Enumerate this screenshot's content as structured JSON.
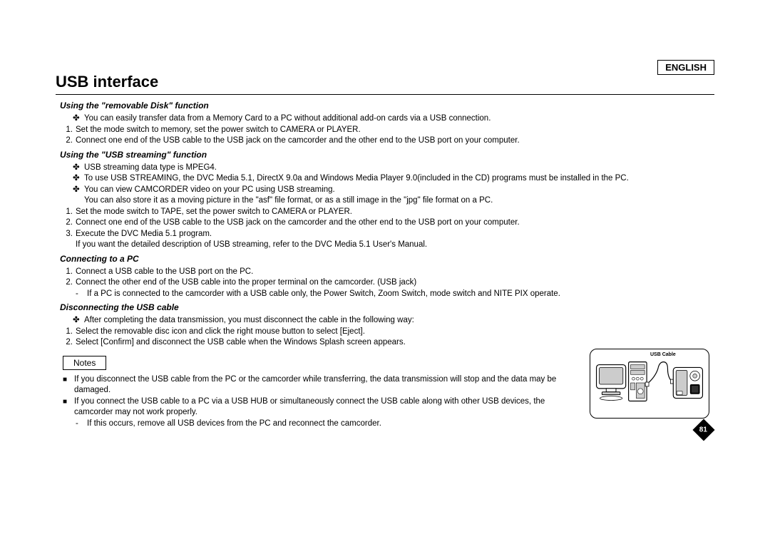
{
  "language": "ENGLISH",
  "title": "USB interface",
  "page_number": "81",
  "typography": {
    "title_fontsize": 22,
    "section_fontsize": 12,
    "body_fontsize": 11.5,
    "font_family": "Arial",
    "text_color": "#000000",
    "background_color": "#ffffff"
  },
  "diagram": {
    "label": "USB Cable",
    "border_color": "#000000",
    "border_radius": 10,
    "fill": "#ffffff",
    "stroke": "#000000",
    "detail_fill": "#cccccc"
  },
  "sections": [
    {
      "heading": "Using the \"removable Disk\" function",
      "items": [
        {
          "kind": "bullet",
          "sym": "✤",
          "text": "You can easily transfer data from a Memory Card to a PC without additional add-on cards via a USB connection."
        },
        {
          "kind": "number",
          "num": "1.",
          "text": "Set the mode switch to memory, set the power switch to CAMERA or PLAYER."
        },
        {
          "kind": "number",
          "num": "2.",
          "text": "Connect one end of the USB cable to the USB jack on the camcorder and the other end to the USB port on your computer."
        }
      ]
    },
    {
      "heading": "Using the \"USB streaming\" function",
      "items": [
        {
          "kind": "bullet",
          "sym": "✤",
          "text": "USB streaming data type is MPEG4."
        },
        {
          "kind": "bullet",
          "sym": "✤",
          "text": "To use USB STREAMING, the DVC Media 5.1, DirectX 9.0a and Windows Media Player 9.0(included in the CD) programs must be installed in the PC."
        },
        {
          "kind": "bullet",
          "sym": "✤",
          "text": "You can view CAMCORDER video on your PC using USB streaming."
        },
        {
          "kind": "cont",
          "text": "You can also store it as a moving picture in the \"asf\" file format, or as a still image in the \"jpg\" file format on a PC."
        },
        {
          "kind": "number",
          "num": "1.",
          "text": "Set the mode switch to TAPE, set the power switch to CAMERA or PLAYER."
        },
        {
          "kind": "number",
          "num": "2.",
          "text": "Connect one end of the USB cable to the USB jack on the camcorder and the other end to the USB port on your computer."
        },
        {
          "kind": "number",
          "num": "3.",
          "text": "Execute the DVC Media 5.1 program."
        },
        {
          "kind": "cont-num",
          "text": "If you want the detailed description of USB streaming, refer to the DVC Media 5.1 User's Manual."
        }
      ]
    },
    {
      "heading": "Connecting to a PC",
      "items": [
        {
          "kind": "number",
          "num": "1.",
          "text": "Connect a USB cable to the USB port on the PC."
        },
        {
          "kind": "number",
          "num": "2.",
          "text": "Connect the other end of the USB cable into the proper terminal on the camcorder. (USB jack)"
        },
        {
          "kind": "dash",
          "text": "If a PC is connected to the camcorder with a USB cable only, the Power Switch, Zoom Switch, mode switch and NITE PIX operate."
        }
      ]
    },
    {
      "heading": "Disconnecting the USB cable",
      "items": [
        {
          "kind": "bullet",
          "sym": "✤",
          "text": "After completing the data transmission, you must disconnect the cable in the following way:"
        },
        {
          "kind": "number",
          "num": "1.",
          "text": "Select the removable disc icon and click the right mouse button to select [Eject]."
        },
        {
          "kind": "number",
          "num": "2.",
          "text": "Select [Confirm] and disconnect the USB cable when the Windows Splash screen appears."
        }
      ]
    }
  ],
  "notes_label": "Notes",
  "notes": [
    {
      "text": "If you disconnect the USB cable from the PC or the camcorder while transferring, the data transmission will stop and the data may be damaged."
    },
    {
      "text": "If you connect the USB cable to a PC via a USB HUB or simultaneously connect the USB cable along with other USB devices, the camcorder may not work properly."
    },
    {
      "kind": "dash",
      "text": "If this occurs, remove all USB devices from the PC and reconnect the camcorder."
    }
  ]
}
